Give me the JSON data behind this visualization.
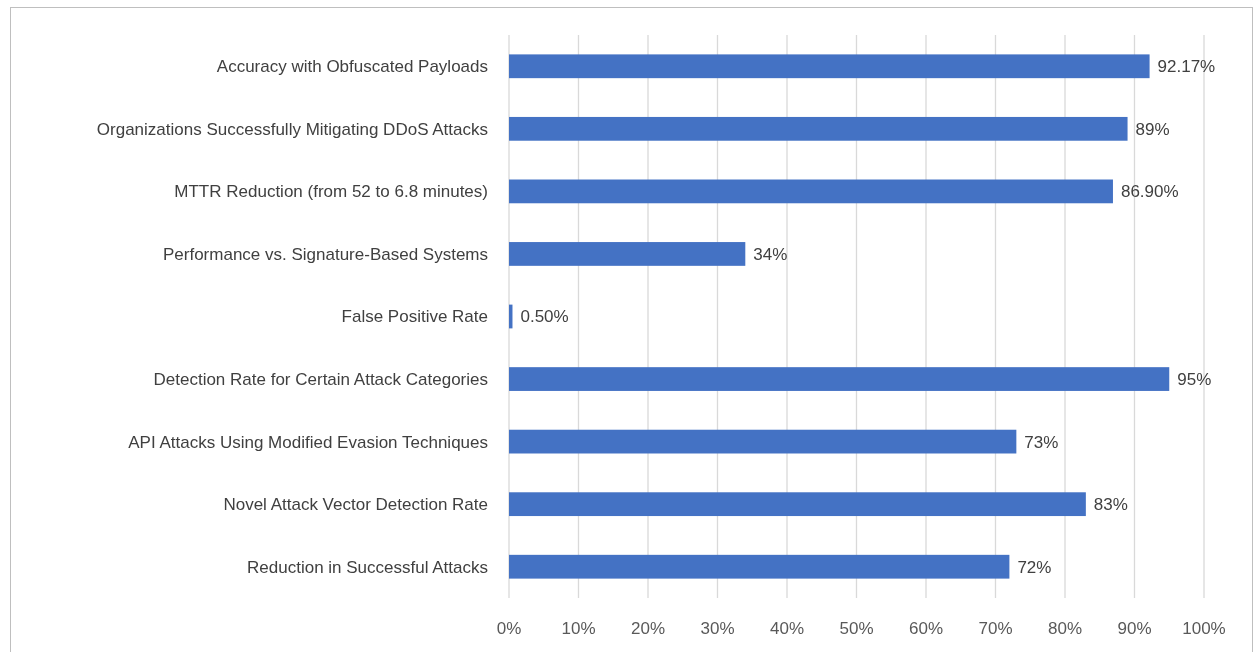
{
  "chart_data": {
    "type": "bar",
    "orientation": "horizontal",
    "categories": [
      "Accuracy with Obfuscated Payloads",
      "Organizations Successfully Mitigating DDoS Attacks",
      "MTTR Reduction (from 52 to 6.8 minutes)",
      "Performance vs. Signature-Based Systems",
      "False Positive Rate",
      "Detection Rate for Certain Attack Categories",
      "API Attacks Using Modified Evasion Techniques",
      "Novel Attack Vector Detection Rate",
      "Reduction in Successful Attacks"
    ],
    "values": [
      92.17,
      89,
      86.9,
      34,
      0.5,
      95,
      73,
      83,
      72
    ],
    "value_labels": [
      "92.17%",
      "89%",
      "86.90%",
      "34%",
      "0.50%",
      "95%",
      "73%",
      "83%",
      "72%"
    ],
    "color": "#4472c4",
    "xlim": [
      0,
      100
    ],
    "xticks": [
      {
        "value": 0,
        "label": "0%"
      },
      {
        "value": 10,
        "label": "10%"
      },
      {
        "value": 20,
        "label": "20%"
      },
      {
        "value": 30,
        "label": "30%"
      },
      {
        "value": 40,
        "label": "40%"
      },
      {
        "value": 50,
        "label": "50%"
      },
      {
        "value": 60,
        "label": "60%"
      },
      {
        "value": 70,
        "label": "70%"
      },
      {
        "value": 80,
        "label": "80%"
      },
      {
        "value": 90,
        "label": "90%"
      },
      {
        "value": 100,
        "label": "100%"
      }
    ],
    "grid": "x"
  }
}
